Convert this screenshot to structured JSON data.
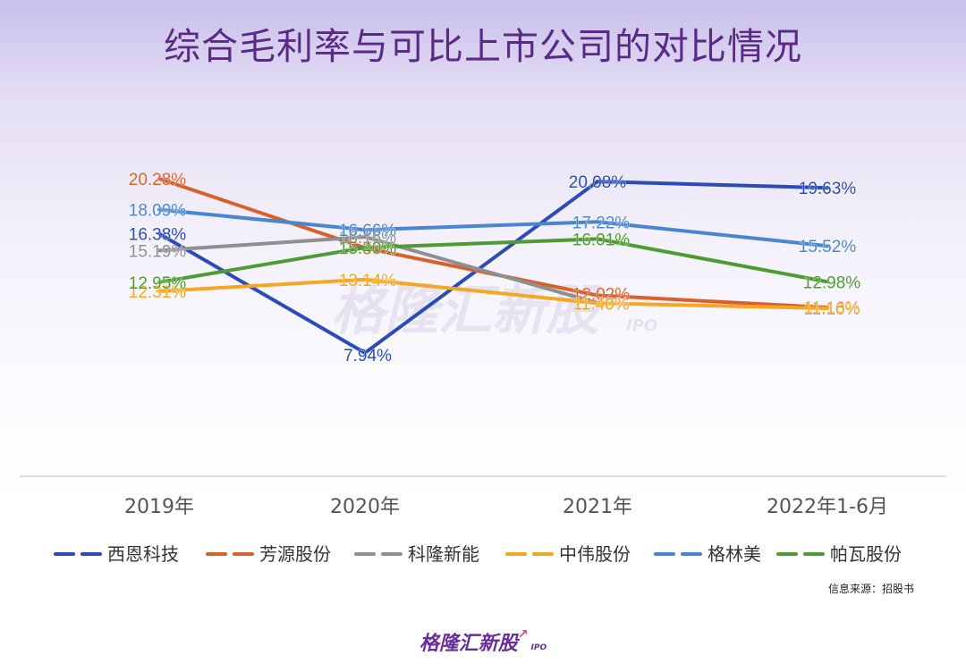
{
  "title": "综合毛利率与可比上市公司的对比情况",
  "source_text": "信息来源：招股书",
  "watermark": {
    "main": "格隆汇新股",
    "sub": "IPO"
  },
  "footer_logo": {
    "main": "格隆汇新股",
    "sub": "IPO"
  },
  "chart_data": {
    "type": "line",
    "categories": [
      "2019年",
      "2020年",
      "2021年",
      "2022年1-6月"
    ],
    "unit": "%",
    "ylim": [
      0,
      24
    ],
    "grid": false,
    "legend_position": "bottom",
    "series": [
      {
        "name": "西恩科技",
        "color": "#2b4bb8",
        "values": [
          16.38,
          7.94,
          20.08,
          19.63
        ],
        "labels": [
          "16.38%",
          "7.94%",
          "20.08%",
          "19.63%"
        ]
      },
      {
        "name": "芳源股份",
        "color": "#d95f2b",
        "values": [
          20.28,
          15.38,
          12.02,
          11.16
        ],
        "labels": [
          "20.28%",
          "15.38%",
          "12.02%",
          "11.16%"
        ]
      },
      {
        "name": "科隆新能",
        "color": "#8f8f8f",
        "values": [
          15.19,
          16.16,
          11.48,
          null
        ],
        "labels": [
          "15.19%",
          "16.16%",
          "11.48%",
          ""
        ]
      },
      {
        "name": "中伟股份",
        "color": "#f5a623",
        "values": [
          12.31,
          13.14,
          11.46,
          11.1
        ],
        "labels": [
          "12.31%",
          "13.14%",
          "11.46%",
          "11.10%"
        ]
      },
      {
        "name": "格林美",
        "color": "#4a86cf",
        "values": [
          18.09,
          16.66,
          17.22,
          15.52
        ],
        "labels": [
          "18.09%",
          "16.66%",
          "17.22%",
          "15.52%"
        ]
      },
      {
        "name": "帕瓦股份",
        "color": "#4e9a33",
        "values": [
          12.95,
          15.4,
          16.01,
          12.98
        ],
        "labels": [
          "12.95%",
          "15.40%",
          "16.01%",
          "12.98%"
        ]
      }
    ]
  }
}
